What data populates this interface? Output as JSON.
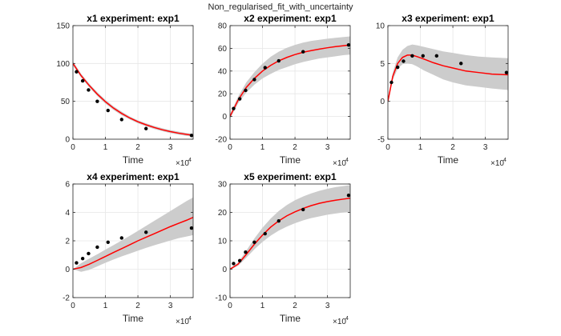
{
  "figure": {
    "suptitle": "Non_regularised_fit_with_uncertainty"
  },
  "chart_data": [
    {
      "type": "line",
      "title": "x1 experiment: exp1",
      "xlabel": "Time",
      "x_multiplier": "×10",
      "x_multiplier_exp": "4",
      "xlim": [
        0,
        3.7
      ],
      "ylim": [
        0,
        150
      ],
      "xticks": [
        0,
        1,
        2,
        3
      ],
      "yticks": [
        0,
        50,
        100,
        150
      ],
      "grid": true,
      "fit": {
        "x": [
          0,
          0.25,
          0.5,
          0.75,
          1.0,
          1.25,
          1.5,
          1.75,
          2.0,
          2.25,
          2.5,
          2.75,
          3.0,
          3.25,
          3.5,
          3.7
        ],
        "y": [
          100,
          84,
          71,
          59.5,
          49.5,
          41,
          34,
          28,
          23,
          19,
          15.5,
          12.5,
          10,
          8,
          6.3,
          5.2
        ],
        "color": "#ff0000"
      },
      "band": {
        "x": [
          0,
          0.25,
          0.5,
          0.75,
          1.0,
          1.25,
          1.5,
          1.75,
          2.0,
          2.25,
          2.5,
          2.75,
          3.0,
          3.25,
          3.5,
          3.7
        ],
        "lower": [
          97,
          81.5,
          68.5,
          57,
          47,
          38.5,
          31.5,
          26,
          21,
          17,
          13.5,
          10.5,
          8,
          6,
          4.4,
          3.4
        ],
        "upper": [
          103,
          86.5,
          73.5,
          62,
          52,
          43.5,
          36.5,
          30,
          25,
          21,
          17.5,
          14.5,
          12,
          10,
          8.2,
          7
        ],
        "color": "#cccccc"
      },
      "points": {
        "x": [
          0.11,
          0.3,
          0.48,
          0.75,
          1.08,
          1.5,
          2.25,
          3.65
        ],
        "y": [
          89,
          77,
          65,
          50,
          38,
          26,
          14,
          5
        ]
      }
    },
    {
      "type": "line",
      "title": "x2 experiment: exp1",
      "xlabel": "Time",
      "x_multiplier": "×10",
      "x_multiplier_exp": "4",
      "xlim": [
        0,
        3.7
      ],
      "ylim": [
        -20,
        80
      ],
      "xticks": [
        0,
        1,
        2,
        3
      ],
      "yticks": [
        -20,
        0,
        20,
        40,
        60,
        80
      ],
      "grid": true,
      "fit": {
        "x": [
          0,
          0.25,
          0.5,
          0.75,
          1.0,
          1.25,
          1.5,
          1.75,
          2.0,
          2.25,
          2.5,
          2.75,
          3.0,
          3.25,
          3.5,
          3.7
        ],
        "y": [
          0,
          14.5,
          25.5,
          33.5,
          40,
          45,
          49,
          52,
          54.5,
          56.5,
          58,
          59.3,
          60.5,
          61.5,
          62.3,
          63
        ],
        "color": "#ff0000"
      },
      "band": {
        "x": [
          0,
          0.25,
          0.5,
          0.75,
          1.0,
          1.25,
          1.5,
          1.75,
          2.0,
          2.25,
          2.5,
          2.75,
          3.0,
          3.25,
          3.5,
          3.7
        ],
        "lower": [
          -2,
          11.5,
          21,
          28,
          33.5,
          37.5,
          41,
          43.5,
          46,
          48,
          49.5,
          51,
          52,
          53,
          54,
          54.5
        ],
        "upper": [
          2,
          17.5,
          30,
          39,
          46.5,
          52.5,
          57,
          60.5,
          63,
          65,
          66.5,
          67.5,
          68.5,
          69.3,
          70,
          70.5
        ],
        "color": "#cccccc"
      },
      "points": {
        "x": [
          0.11,
          0.3,
          0.48,
          0.75,
          1.08,
          1.5,
          2.25,
          3.65
        ],
        "y": [
          7,
          15.5,
          23,
          32.5,
          43,
          49,
          57,
          63
        ]
      }
    },
    {
      "type": "line",
      "title": "x3 experiment: exp1",
      "xlabel": "Time",
      "x_multiplier": "×10",
      "x_multiplier_exp": "4",
      "xlim": [
        0,
        3.7
      ],
      "ylim": [
        -5,
        10
      ],
      "xticks": [
        0,
        1,
        2,
        3
      ],
      "yticks": [
        -5,
        0,
        5,
        10
      ],
      "grid": true,
      "fit": {
        "x": [
          0,
          0.15,
          0.3,
          0.45,
          0.6,
          0.75,
          0.9,
          1.1,
          1.4,
          1.7,
          2.0,
          2.4,
          2.8,
          3.2,
          3.7
        ],
        "y": [
          0,
          3.3,
          5.0,
          5.8,
          6.1,
          6.1,
          5.9,
          5.6,
          5.1,
          4.7,
          4.4,
          4.0,
          3.8,
          3.6,
          3.5
        ],
        "color": "#ff0000"
      },
      "band": {
        "x": [
          0,
          0.15,
          0.3,
          0.45,
          0.6,
          0.75,
          0.9,
          1.1,
          1.4,
          1.7,
          2.0,
          2.4,
          2.8,
          3.2,
          3.7
        ],
        "lower": [
          -0.3,
          2.8,
          4.3,
          4.9,
          5.0,
          4.9,
          4.6,
          4.1,
          3.5,
          2.9,
          2.5,
          2.1,
          1.9,
          1.7,
          1.5
        ],
        "upper": [
          0.3,
          3.8,
          5.8,
          6.8,
          7.3,
          7.5,
          7.4,
          7.2,
          6.9,
          6.6,
          6.4,
          6.1,
          5.9,
          5.8,
          5.7
        ],
        "color": "#cccccc"
      },
      "points": {
        "x": [
          0.11,
          0.3,
          0.48,
          0.75,
          1.08,
          1.5,
          2.25,
          3.65
        ],
        "y": [
          2.5,
          4.5,
          5.3,
          6.0,
          6.0,
          6.0,
          5.0,
          3.8
        ]
      }
    },
    {
      "type": "line",
      "title": "x4 experiment: exp1",
      "xlabel": "Time",
      "x_multiplier": "×10",
      "x_multiplier_exp": "4",
      "xlim": [
        0,
        3.7
      ],
      "ylim": [
        -2,
        6
      ],
      "xticks": [
        0,
        1,
        2,
        3
      ],
      "yticks": [
        -2,
        0,
        2,
        4,
        6
      ],
      "grid": true,
      "fit": {
        "x": [
          0,
          0.25,
          0.5,
          0.75,
          1.0,
          1.25,
          1.5,
          1.75,
          2.0,
          2.25,
          2.5,
          2.75,
          3.0,
          3.25,
          3.5,
          3.7
        ],
        "y": [
          0,
          0.12,
          0.35,
          0.62,
          0.9,
          1.18,
          1.45,
          1.72,
          2.0,
          2.25,
          2.5,
          2.75,
          3.0,
          3.23,
          3.45,
          3.65
        ],
        "color": "#ff0000"
      },
      "band": {
        "x": [
          0,
          0.25,
          0.5,
          0.75,
          1.0,
          1.25,
          1.5,
          1.75,
          2.0,
          2.25,
          2.5,
          2.75,
          3.0,
          3.25,
          3.5,
          3.7
        ],
        "lower": [
          0,
          -0.18,
          -0.05,
          0.2,
          0.45,
          0.68,
          0.9,
          1.1,
          1.3,
          1.5,
          1.68,
          1.85,
          2.02,
          2.18,
          2.3,
          2.4
        ],
        "upper": [
          0,
          0.42,
          0.75,
          1.05,
          1.38,
          1.7,
          2.02,
          2.35,
          2.7,
          3.05,
          3.4,
          3.75,
          4.1,
          4.45,
          4.8,
          5.05
        ],
        "color": "#cccccc"
      },
      "points": {
        "x": [
          0.11,
          0.3,
          0.48,
          0.75,
          1.08,
          1.5,
          2.25,
          3.65
        ],
        "y": [
          0.45,
          0.75,
          1.1,
          1.55,
          1.9,
          2.2,
          2.6,
          2.9
        ]
      }
    },
    {
      "type": "line",
      "title": "x5 experiment: exp1",
      "xlabel": "Time",
      "x_multiplier": "×10",
      "x_multiplier_exp": "4",
      "xlim": [
        0,
        3.7
      ],
      "ylim": [
        -10,
        30
      ],
      "xticks": [
        0,
        1,
        2,
        3
      ],
      "yticks": [
        -10,
        0,
        10,
        20,
        30
      ],
      "grid": true,
      "fit": {
        "x": [
          0,
          0.25,
          0.5,
          0.75,
          1.0,
          1.25,
          1.5,
          1.75,
          2.0,
          2.25,
          2.5,
          2.75,
          3.0,
          3.25,
          3.5,
          3.7
        ],
        "y": [
          0,
          1.8,
          5.2,
          8.8,
          12,
          14.8,
          17,
          18.8,
          20.2,
          21.4,
          22.4,
          23.2,
          23.8,
          24.3,
          24.7,
          25
        ],
        "color": "#ff0000"
      },
      "band": {
        "x": [
          0,
          0.25,
          0.5,
          0.75,
          1.0,
          1.25,
          1.5,
          1.75,
          2.0,
          2.25,
          2.5,
          2.75,
          3.0,
          3.25,
          3.5,
          3.7
        ],
        "lower": [
          -0.3,
          1.2,
          4.0,
          7.0,
          9.6,
          11.8,
          13.6,
          15.0,
          16.2,
          17.2,
          18.0,
          18.6,
          19.2,
          19.6,
          20.0,
          20.2
        ],
        "upper": [
          0.3,
          2.4,
          6.5,
          10.8,
          14.6,
          17.8,
          20.5,
          22.6,
          24.3,
          25.6,
          26.7,
          27.6,
          28.3,
          28.9,
          29.3,
          29.6
        ],
        "color": "#cccccc"
      },
      "points": {
        "x": [
          0.11,
          0.3,
          0.48,
          0.75,
          1.08,
          1.5,
          2.25,
          3.65
        ],
        "y": [
          2,
          3,
          6,
          9.5,
          12.5,
          17,
          21,
          26
        ]
      }
    }
  ]
}
